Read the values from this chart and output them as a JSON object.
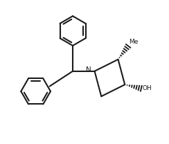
{
  "background": "#ffffff",
  "line_color": "#1a1a1a",
  "line_width": 1.5,
  "fig_width": 2.44,
  "fig_height": 2.08,
  "dpi": 100,
  "xlim": [
    0.0,
    10.0
  ],
  "ylim": [
    0.5,
    9.0
  ]
}
